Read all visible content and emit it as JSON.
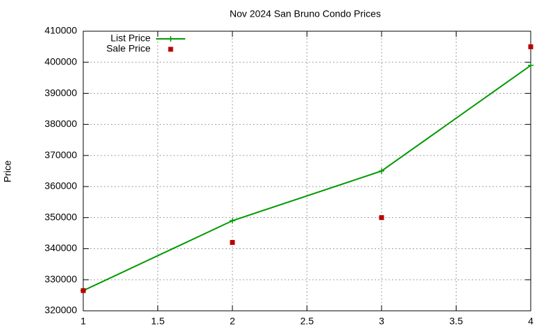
{
  "chart_data": {
    "type": "line",
    "title": "Nov 2024 San Bruno Condo Prices",
    "y_label": "Price",
    "x": [
      1,
      2,
      3,
      4
    ],
    "series": [
      {
        "name": "List Price",
        "color": "#009900",
        "line": true,
        "marker": "plus",
        "values": [
          326500,
          349000,
          365000,
          399000
        ]
      },
      {
        "name": "Sale Price",
        "color": "#bb0000",
        "line": false,
        "marker": "square",
        "values": [
          326500,
          342000,
          350000,
          405000
        ]
      }
    ],
    "xlim": [
      1,
      4
    ],
    "xticks": [
      1,
      1.5,
      2,
      2.5,
      3,
      3.5,
      4
    ],
    "ylim": [
      320000,
      410000
    ],
    "yticks": [
      320000,
      330000,
      340000,
      350000,
      360000,
      370000,
      380000,
      390000,
      400000,
      410000
    ],
    "grid": true,
    "legend": "top-left"
  }
}
